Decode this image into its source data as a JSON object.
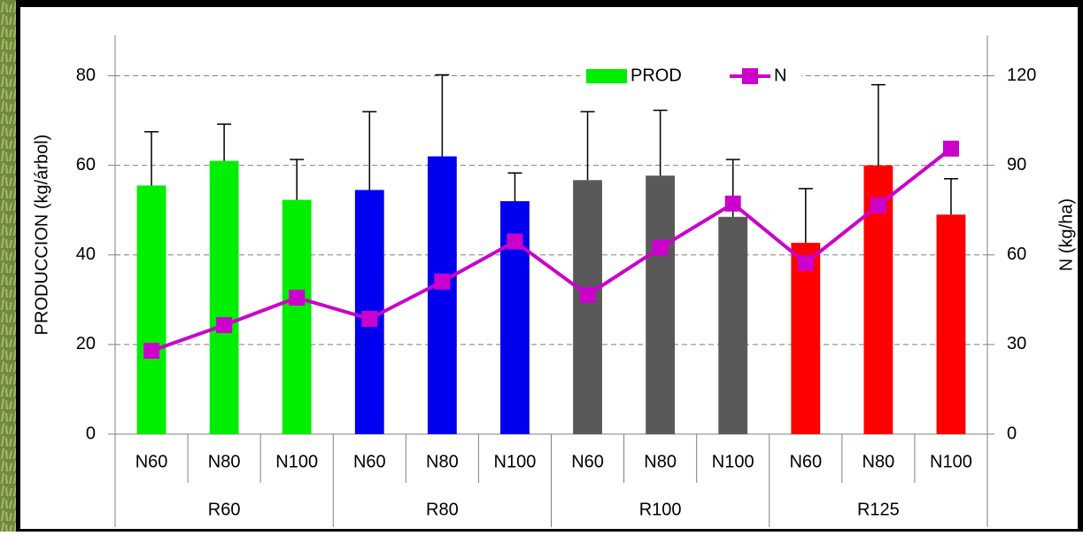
{
  "chart_data": {
    "type": "bar",
    "ylabel": "PRODUCCION  (kg/árbol)",
    "y2label": "N (kg/ha)",
    "groups": [
      {
        "name": "R60",
        "categories": [
          "N60",
          "N80",
          "N100"
        ]
      },
      {
        "name": "R80",
        "categories": [
          "N60",
          "N80",
          "N100"
        ]
      },
      {
        "name": "R100",
        "categories": [
          "N60",
          "N80",
          "N100"
        ]
      },
      {
        "name": "R125",
        "categories": [
          "N60",
          "N80",
          "N100"
        ]
      }
    ],
    "series": [
      {
        "name": "PROD",
        "type": "bar",
        "color": "#00ee00",
        "colors": [
          "#00ee00",
          "#00ee00",
          "#00ee00",
          "#0000ee",
          "#0000ee",
          "#0000ee",
          "#595959",
          "#595959",
          "#595959",
          "#ff0000",
          "#ff0000",
          "#ff0000"
        ],
        "values": [
          55.5,
          61,
          52.3,
          54.5,
          62,
          52,
          56.7,
          57.7,
          48.5,
          42.7,
          60,
          49
        ],
        "errors": [
          12,
          8.2,
          9,
          17.5,
          18.2,
          6.3,
          15.3,
          14.6,
          12.8,
          12.1,
          18,
          8
        ]
      },
      {
        "name": "N",
        "type": "line",
        "axis": "y2",
        "color": "#cc00cc",
        "values": [
          27.9,
          36.5,
          45.7,
          38.6,
          51.1,
          64.5,
          46.6,
          62.4,
          77.2,
          57.3,
          76.6,
          95.6
        ]
      }
    ],
    "ylim": [
      0,
      89
    ],
    "yticks": [
      0,
      20,
      40,
      60,
      80
    ],
    "y2lim": [
      0,
      133.5
    ],
    "y2ticks": [
      0,
      30,
      60,
      90,
      120
    ],
    "grid": true,
    "legend": "top"
  }
}
